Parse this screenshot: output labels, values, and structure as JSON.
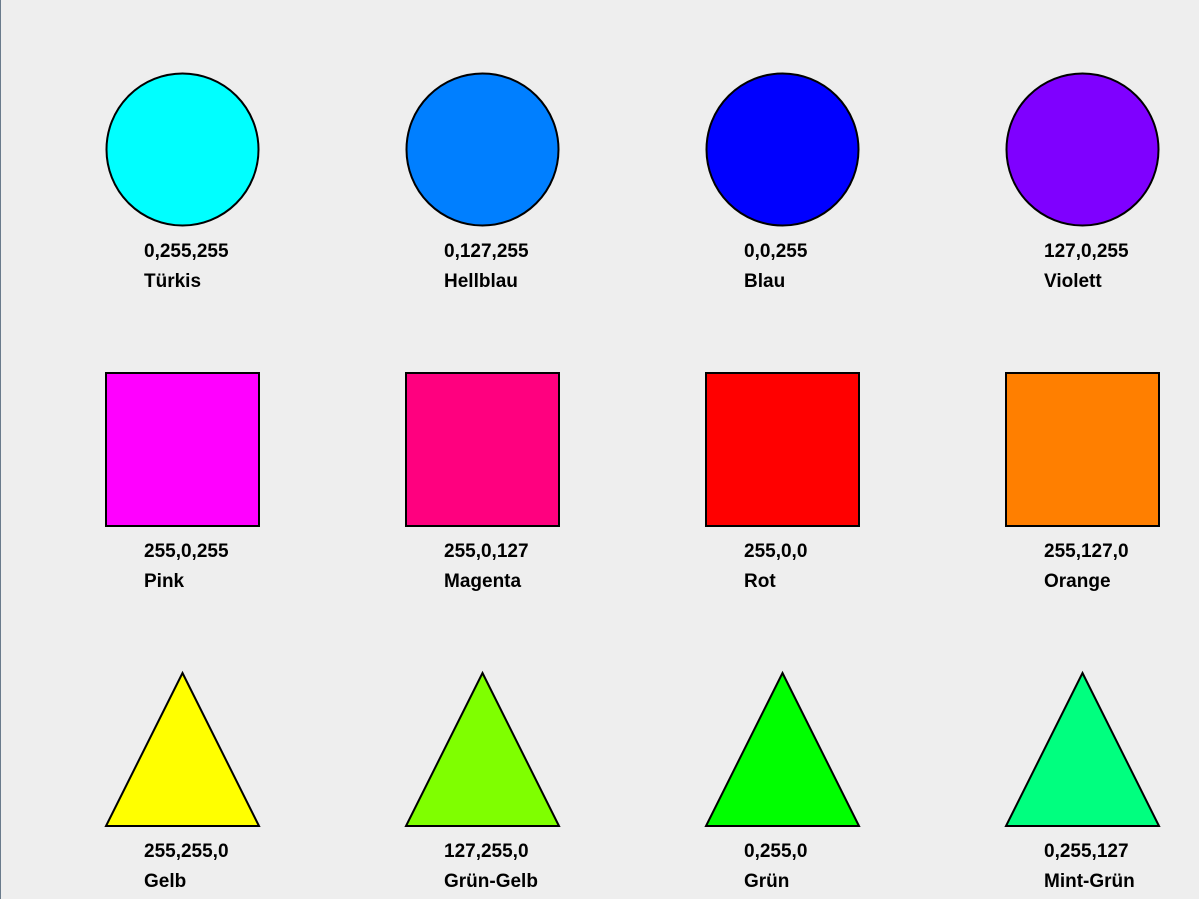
{
  "rows": [
    {
      "shape": "circle",
      "swatches": [
        {
          "rgb": "0,255,255",
          "name": "Türkis",
          "color": "#00ffff"
        },
        {
          "rgb": "0,127,255",
          "name": "Hellblau",
          "color": "#007fff"
        },
        {
          "rgb": "0,0,255",
          "name": "Blau",
          "color": "#0000ff"
        },
        {
          "rgb": "127,0,255",
          "name": "Violett",
          "color": "#7f00ff"
        }
      ]
    },
    {
      "shape": "square",
      "swatches": [
        {
          "rgb": "255,0,255",
          "name": "Pink",
          "color": "#ff00ff"
        },
        {
          "rgb": "255,0,127",
          "name": "Magenta",
          "color": "#ff007f"
        },
        {
          "rgb": "255,0,0",
          "name": "Rot",
          "color": "#ff0000"
        },
        {
          "rgb": "255,127,0",
          "name": "Orange",
          "color": "#ff7f00"
        }
      ]
    },
    {
      "shape": "triangle",
      "swatches": [
        {
          "rgb": "255,255,0",
          "name": "Gelb",
          "color": "#ffff00"
        },
        {
          "rgb": "127,255,0",
          "name": "Grün-Gelb",
          "color": "#7fff00"
        },
        {
          "rgb": "0,255,0",
          "name": "Grün",
          "color": "#00ff00"
        },
        {
          "rgb": "0,255,127",
          "name": "Mint-Grün",
          "color": "#00ff7f"
        }
      ]
    }
  ]
}
